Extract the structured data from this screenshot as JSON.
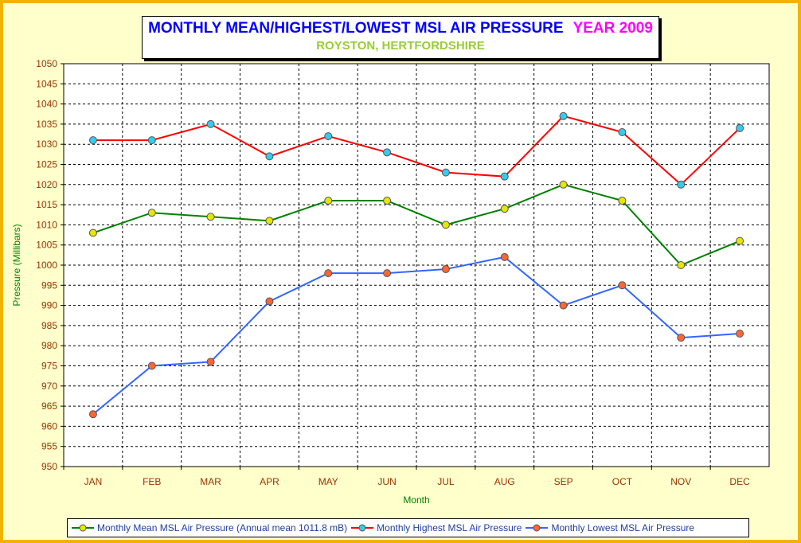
{
  "chart_data": {
    "type": "line",
    "title": "MONTHLY MEAN/HIGHEST/LOWEST MSL AIR PRESSURE",
    "title_year": "YEAR 2009",
    "subtitle": "ROYSTON, HERTFORDSHIRE",
    "xlabel": "Month",
    "ylabel": "Pressure (Millibars)",
    "ylim": [
      950,
      1050
    ],
    "ytick_step": 5,
    "grid": true,
    "legend_position": "bottom",
    "categories": [
      "JAN",
      "FEB",
      "MAR",
      "APR",
      "MAY",
      "JUN",
      "JUL",
      "AUG",
      "SEP",
      "OCT",
      "NOV",
      "DEC"
    ],
    "series": [
      {
        "name": "Monthly Mean MSL Air Pressure (Annual mean 1011.8 mB)",
        "values": [
          1008,
          1013,
          1012,
          1011,
          1016,
          1016,
          1010,
          1014,
          1020,
          1016,
          1000,
          1006
        ],
        "line_color": "#008000",
        "marker_color": "#e6e600"
      },
      {
        "name": "Monthly Highest MSL Air Pressure",
        "values": [
          1031,
          1031,
          1035,
          1027,
          1032,
          1028,
          1023,
          1022,
          1037,
          1033,
          1020,
          1034
        ],
        "line_color": "#ff0000",
        "marker_color": "#33ccee"
      },
      {
        "name": "Monthly Lowest MSL Air Pressure",
        "values": [
          963,
          975,
          976,
          991,
          998,
          998,
          999,
          1002,
          990,
          995,
          982,
          983
        ],
        "line_color": "#3366ff",
        "marker_color": "#ff6633"
      }
    ]
  },
  "colors": {
    "frame": "#f0b400",
    "background": "#ffffcc",
    "tick_label": "#993300",
    "axis_title": "#008000"
  }
}
